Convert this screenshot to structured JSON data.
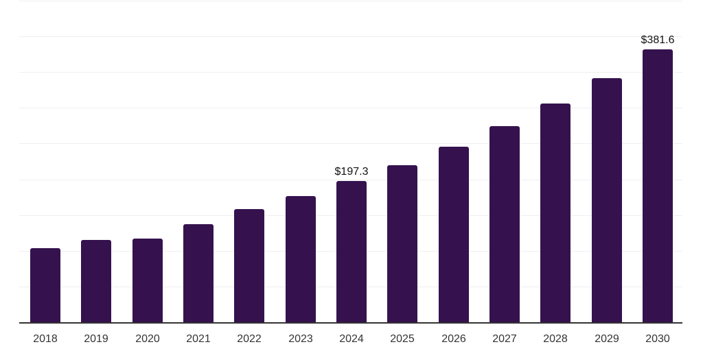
{
  "chart_data": {
    "type": "bar",
    "title": "",
    "xlabel": "",
    "ylabel": "",
    "categories": [
      "2018",
      "2019",
      "2020",
      "2021",
      "2022",
      "2023",
      "2024",
      "2025",
      "2026",
      "2027",
      "2028",
      "2029",
      "2030"
    ],
    "values": [
      103.6,
      115.4,
      116.6,
      137.0,
      158.7,
      177.0,
      197.3,
      220.2,
      245.8,
      274.4,
      306.3,
      341.9,
      381.6
    ],
    "data_labels": [
      null,
      null,
      null,
      null,
      null,
      null,
      "$197.3",
      null,
      null,
      null,
      null,
      null,
      "$381.6"
    ],
    "ylim": [
      0,
      450
    ],
    "grid_step": 50,
    "grid": "horizontal-only",
    "y_tick_labels_visible": false,
    "legend": "none",
    "colors": {
      "bar": "#35124E",
      "gridline": "#EFEFEF",
      "axis_line": "#333333",
      "tick_label": "#333333",
      "data_label": "#111111",
      "background": "#FFFFFF"
    }
  }
}
